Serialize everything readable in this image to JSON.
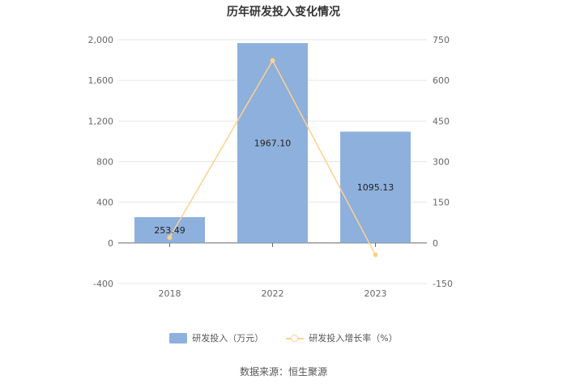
{
  "chart_data": {
    "type": "bar",
    "title": "历年研发投入变化情况",
    "categories": [
      "2018",
      "2022",
      "2023"
    ],
    "series": [
      {
        "name": "研发投入（万元）",
        "type": "bar",
        "axis": "left",
        "values": [
          253.49,
          1967.1,
          1095.13
        ],
        "labels": [
          "253.49",
          "1967.10",
          "1095.13"
        ],
        "color": "#8eb0dc"
      },
      {
        "name": "研发投入增长率（%）",
        "type": "line",
        "axis": "right",
        "values": [
          20,
          673,
          -44
        ],
        "color": "#ffd08f"
      }
    ],
    "left_axis": {
      "ylim": [
        -400,
        2000
      ],
      "ticks": [
        2000,
        1600,
        1200,
        800,
        400,
        0,
        -400
      ],
      "tick_labels": [
        "2,000",
        "1,600",
        "1,200",
        "800",
        "400",
        "0",
        "-400"
      ]
    },
    "right_axis": {
      "ylim": [
        -150,
        750
      ],
      "ticks": [
        750,
        600,
        450,
        300,
        150,
        0,
        -150
      ],
      "tick_labels": [
        "750",
        "600",
        "450",
        "300",
        "150",
        "0",
        "-150"
      ]
    },
    "grid": true,
    "legend_position": "bottom"
  },
  "source_text": "数据来源：恒生聚源"
}
